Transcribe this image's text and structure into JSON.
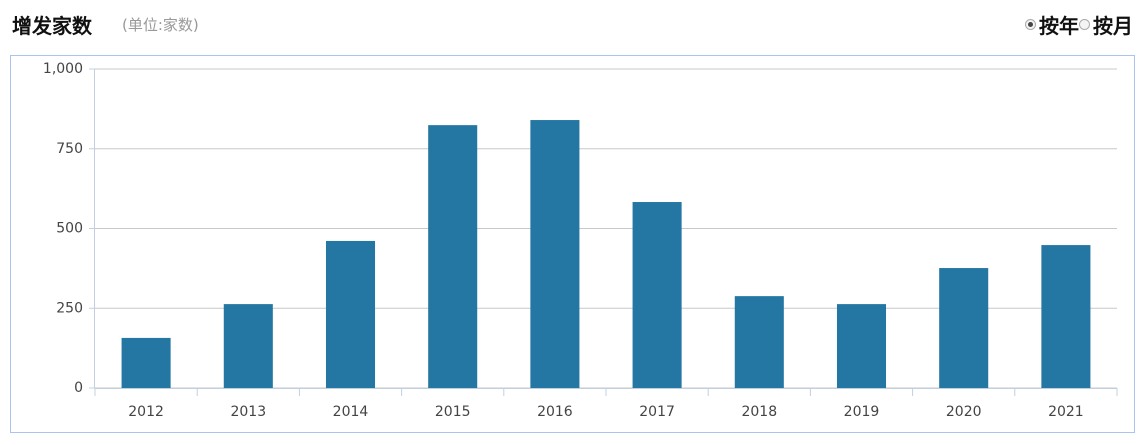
{
  "chart_data": {
    "type": "bar",
    "title": "增发家数",
    "subtitle": "(单位:家数)",
    "categories": [
      "2012",
      "2013",
      "2014",
      "2015",
      "2016",
      "2017",
      "2018",
      "2019",
      "2020",
      "2021"
    ],
    "values": [
      157,
      263,
      461,
      824,
      840,
      583,
      288,
      263,
      376,
      448
    ],
    "color": "#2577a3",
    "ylim": [
      0,
      1000
    ],
    "yticks": [
      0,
      250,
      500,
      750,
      {
        "value": 1000,
        "label": "1,000"
      }
    ],
    "grid": true
  },
  "controls": {
    "period": [
      {
        "label": "按年",
        "checked": true
      },
      {
        "label": "按月",
        "checked": false
      }
    ]
  }
}
